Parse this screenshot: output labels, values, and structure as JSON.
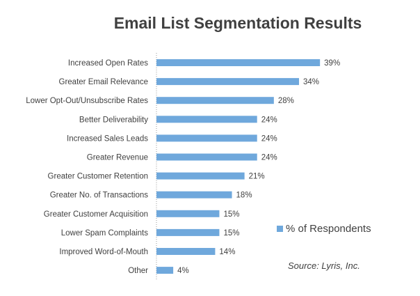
{
  "chart_data": {
    "type": "bar",
    "orientation": "horizontal",
    "title": "Email List Segmentation Results",
    "categories": [
      "Increased Open Rates",
      "Greater Email Relevance",
      "Lower Opt-Out/Unsubscribe Rates",
      "Better Deliverability",
      "Increased Sales Leads",
      "Greater Revenue",
      "Greater Customer Retention",
      "Greater No. of Transactions",
      "Greater Customer Acquisition",
      "Lower Spam Complaints",
      "Improved Word-of-Mouth",
      "Other"
    ],
    "series": [
      {
        "name": "% of Respondents",
        "values": [
          39,
          34,
          28,
          24,
          24,
          24,
          21,
          18,
          15,
          15,
          14,
          4
        ],
        "color": "#6fa8dc"
      }
    ],
    "value_labels": [
      "39%",
      "34%",
      "28%",
      "24%",
      "24%",
      "24%",
      "21%",
      "18%",
      "15%",
      "15%",
      "14%",
      "4%"
    ],
    "xlim": [
      0,
      40
    ],
    "grid": false,
    "legend": "right",
    "annotation": "Source: Lyris, Inc."
  }
}
